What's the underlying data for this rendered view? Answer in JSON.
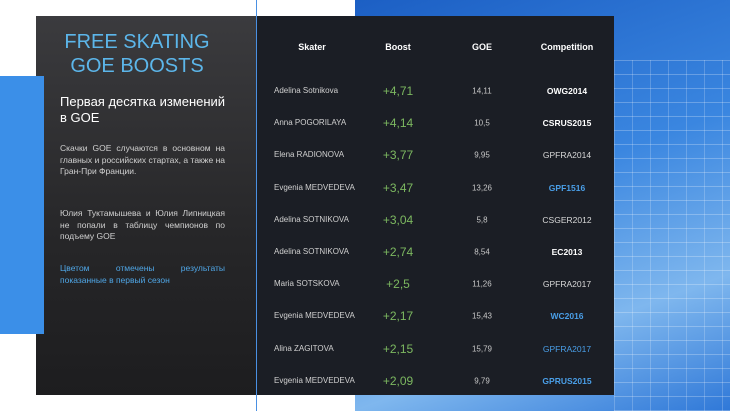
{
  "slide": {
    "title": "FREE SKATING GOE BOOSTS",
    "subtitle": "Первая десятка изменений в GOE",
    "paragraphs": [
      "Скачки GOE случаются в основном на главных и российских стартах, а также на Гран-При Франции.",
      "Юлия Туктамышева и Юлия Липницкая не попали в таблицу чемпионов по подъему GOE"
    ],
    "note": "Цветом отмечены результаты показанные в первый сезон",
    "table": {
      "headers": [
        "Skater",
        "Boost",
        "GOE",
        "Competition"
      ],
      "rows": [
        {
          "skater": "Adelina Sotnikova",
          "boost": "+4,71",
          "goe": "14,11",
          "competition": "OWG2014",
          "color": "#ffffff",
          "weight": "bold"
        },
        {
          "skater": "Anna POGORILAYA",
          "boost": "+4,14",
          "goe": "10,5",
          "competition": "CSRUS2015",
          "color": "#ffffff",
          "weight": "bold"
        },
        {
          "skater": "Elena RADIONOVA",
          "boost": "+3,77",
          "goe": "9,95",
          "competition": "GPFRA2014",
          "color": "#d8d8d8",
          "weight": "normal"
        },
        {
          "skater": "Evgenia MEDVEDEVA",
          "boost": "+3,47",
          "goe": "13,26",
          "competition": "GPF1516",
          "color": "#4a9fe8",
          "weight": "bold"
        },
        {
          "skater": "Adelina SOTNIKOVA",
          "boost": "+3,04",
          "goe": "5,8",
          "competition": "CSGER2012",
          "color": "#d8d8d8",
          "weight": "normal"
        },
        {
          "skater": "Adelina SOTNIKOVA",
          "boost": "+2,74",
          "goe": "8,54",
          "competition": "EC2013",
          "color": "#ffffff",
          "weight": "bold"
        },
        {
          "skater": "Maria SOTSKOVA",
          "boost": "+2,5",
          "goe": "11,26",
          "competition": "GPFRA2017",
          "color": "#d8d8d8",
          "weight": "normal"
        },
        {
          "skater": "Evgenia MEDVEDEVA",
          "boost": "+2,17",
          "goe": "15,43",
          "competition": "WC2016",
          "color": "#4a9fe8",
          "weight": "bold"
        },
        {
          "skater": "Alina ZAGITOVA",
          "boost": "+2,15",
          "goe": "15,79",
          "competition": "GPFRA2017",
          "color": "#4a9fe8",
          "weight": "normal"
        },
        {
          "skater": "Evgenia MEDVEDEVA",
          "boost": "+2,09",
          "goe": "9,79",
          "competition": "GPRUS2015",
          "color": "#4a9fe8",
          "weight": "bold"
        }
      ]
    }
  }
}
